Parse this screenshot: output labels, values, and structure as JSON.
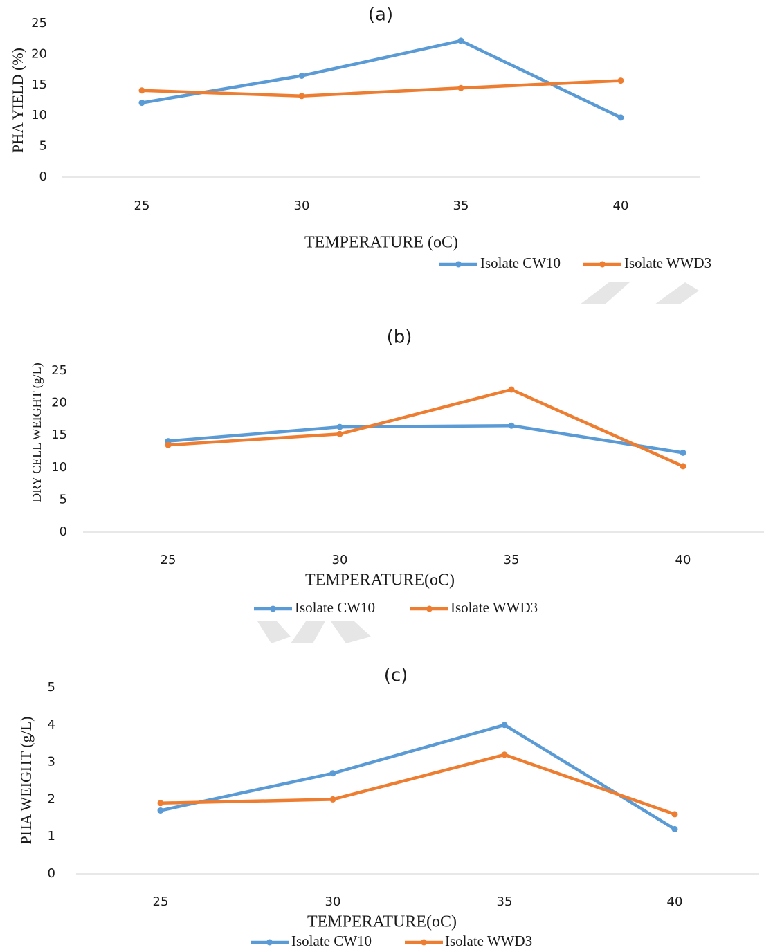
{
  "colors": {
    "cw10": "#5B9BD5",
    "wwd3": "#ED7D31",
    "axis": "#d9d9d9",
    "text": "#1a1a1a",
    "watermark": "#e6e6e6"
  },
  "chart_data": [
    {
      "type": "line",
      "title": "(a)",
      "xlabel": "TEMPERATURE (oC)",
      "ylabel": "PHA YIELD (%)",
      "categories": [
        "25",
        "30",
        "35",
        "40"
      ],
      "yticks": [
        "0",
        "5",
        "10",
        "15",
        "20",
        "25"
      ],
      "ylim": [
        0,
        25
      ],
      "grid": false,
      "legend_position": "bottom-right",
      "series": [
        {
          "name": "Isolate CW10",
          "color_key": "cw10",
          "values": [
            12.1,
            16.5,
            22.2,
            9.7
          ]
        },
        {
          "name": "Isolate WWD3",
          "color_key": "wwd3",
          "values": [
            14.1,
            13.2,
            14.5,
            15.7
          ]
        }
      ]
    },
    {
      "type": "line",
      "title": "(b)",
      "xlabel": "TEMPERATURE(oC)",
      "ylabel": "DRY CELL WEIGHT (g/L)",
      "categories": [
        "25",
        "30",
        "35",
        "40"
      ],
      "yticks": [
        "0",
        "5",
        "10",
        "15",
        "20",
        "25"
      ],
      "ylim": [
        0,
        25
      ],
      "grid": false,
      "legend_position": "bottom-center",
      "series": [
        {
          "name": "Isolate CW10",
          "color_key": "cw10",
          "values": [
            14.1,
            16.3,
            16.5,
            12.3
          ]
        },
        {
          "name": "Isolate WWD3",
          "color_key": "wwd3",
          "values": [
            13.5,
            15.2,
            22.1,
            10.2
          ]
        }
      ]
    },
    {
      "type": "line",
      "title": "(c)",
      "xlabel": "TEMPERATURE(oC)",
      "ylabel": "PHA WEIGHT (g/L)",
      "categories": [
        "25",
        "30",
        "35",
        "40"
      ],
      "yticks": [
        "0",
        "1",
        "2",
        "3",
        "4",
        "5"
      ],
      "ylim": [
        0,
        5
      ],
      "grid": false,
      "legend_position": "bottom-center",
      "series": [
        {
          "name": "Isolate CW10",
          "color_key": "cw10",
          "values": [
            1.7,
            2.7,
            4.0,
            1.2
          ]
        },
        {
          "name": "Isolate WWD3",
          "color_key": "wwd3",
          "values": [
            1.9,
            2.0,
            3.2,
            1.6
          ]
        }
      ]
    }
  ]
}
